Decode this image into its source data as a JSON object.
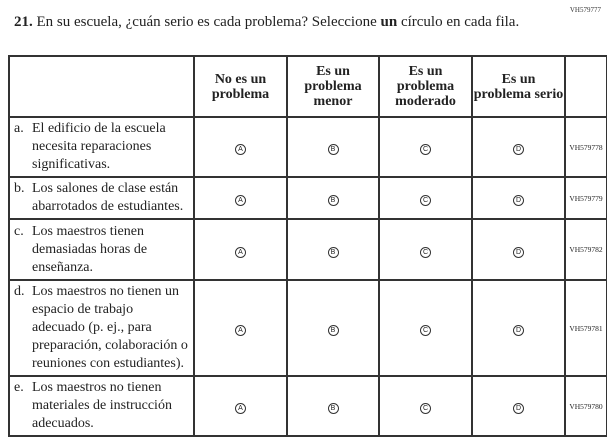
{
  "top_code": "VH579777",
  "question": {
    "number": "21.",
    "text_before": "En su escuela, ¿cuán serio es cada problema? Seleccione ",
    "bold": "un",
    "text_after": " círculo en cada fila."
  },
  "headers": [
    "No es un problema",
    "Es un problema menor",
    "Es un problema moderado",
    "Es un problema serio"
  ],
  "rows": [
    {
      "letter": "a.",
      "text": "El edificio de la escuela necesita reparaciones significativas.",
      "options": [
        "A",
        "B",
        "C",
        "D"
      ],
      "code": "VH579778"
    },
    {
      "letter": "b.",
      "text": "Los salones de clase están abarrotados de estudiantes.",
      "options": [
        "A",
        "B",
        "C",
        "D"
      ],
      "code": "VH579779"
    },
    {
      "letter": "c.",
      "text": "Los maestros tienen demasiadas horas de enseñanza.",
      "options": [
        "A",
        "B",
        "C",
        "D"
      ],
      "code": "VH579782"
    },
    {
      "letter": "d.",
      "text": "Los maestros no tienen un espacio de trabajo adecuado (p. ej., para preparación, colaboración o reuniones con estudiantes).",
      "options": [
        "A",
        "B",
        "C",
        "D"
      ],
      "code": "VH579781"
    },
    {
      "letter": "e.",
      "text": "Los maestros no tienen materiales de instrucción adecuados.",
      "options": [
        "A",
        "B",
        "C",
        "D"
      ],
      "code": "VH579780"
    }
  ]
}
